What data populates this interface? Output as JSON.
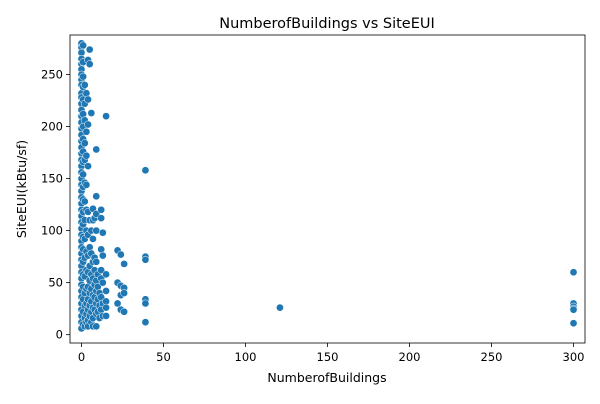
{
  "chart_data": {
    "type": "scatter",
    "title": "NumberofBuildings vs SiteEUI",
    "xlabel": "NumberofBuildings",
    "ylabel": "SiteEUI(kBtu/sf)",
    "xlim": [
      -7,
      307
    ],
    "ylim": [
      -8,
      288
    ],
    "xticks": [
      0,
      50,
      100,
      150,
      200,
      250,
      300
    ],
    "yticks": [
      0,
      50,
      100,
      150,
      200,
      250
    ],
    "grid": false,
    "color": "#1f77b4",
    "series": [
      {
        "points": [
          [
            0,
            280
          ],
          [
            0,
            276
          ],
          [
            0,
            271
          ],
          [
            0,
            265
          ],
          [
            0,
            260
          ],
          [
            0,
            255
          ],
          [
            0,
            250
          ],
          [
            0,
            245
          ],
          [
            0,
            240
          ],
          [
            0,
            232
          ],
          [
            0,
            228
          ],
          [
            0,
            222
          ],
          [
            0,
            216
          ],
          [
            0,
            210
          ],
          [
            0,
            204
          ],
          [
            0,
            198
          ],
          [
            0,
            192
          ],
          [
            0,
            186
          ],
          [
            0,
            180
          ],
          [
            0,
            174
          ],
          [
            0,
            168
          ],
          [
            0,
            162
          ],
          [
            0,
            156
          ],
          [
            0,
            150
          ],
          [
            0,
            144
          ],
          [
            0,
            138
          ],
          [
            0,
            132
          ],
          [
            0,
            126
          ],
          [
            0,
            120
          ],
          [
            0,
            114
          ],
          [
            0,
            108
          ],
          [
            0,
            102
          ],
          [
            0,
            96
          ],
          [
            0,
            90
          ],
          [
            0,
            84
          ],
          [
            0,
            78
          ],
          [
            0,
            72
          ],
          [
            0,
            66
          ],
          [
            0,
            60
          ],
          [
            0,
            54
          ],
          [
            0,
            48
          ],
          [
            0,
            42
          ],
          [
            0,
            36
          ],
          [
            0,
            30
          ],
          [
            0,
            24
          ],
          [
            0,
            18
          ],
          [
            0,
            12
          ],
          [
            0,
            6
          ],
          [
            1,
            278
          ],
          [
            1,
            262
          ],
          [
            1,
            248
          ],
          [
            1,
            238
          ],
          [
            1,
            226
          ],
          [
            1,
            212
          ],
          [
            1,
            200
          ],
          [
            1,
            188
          ],
          [
            1,
            176
          ],
          [
            1,
            166
          ],
          [
            1,
            154
          ],
          [
            1,
            142
          ],
          [
            1,
            130
          ],
          [
            1,
            118
          ],
          [
            1,
            106
          ],
          [
            1,
            94
          ],
          [
            1,
            82
          ],
          [
            1,
            70
          ],
          [
            1,
            58
          ],
          [
            1,
            46
          ],
          [
            1,
            34
          ],
          [
            1,
            22
          ],
          [
            1,
            10
          ],
          [
            2,
            240
          ],
          [
            2,
            222
          ],
          [
            2,
            206
          ],
          [
            2,
            184
          ],
          [
            2,
            168
          ],
          [
            2,
            146
          ],
          [
            2,
            128
          ],
          [
            2,
            110
          ],
          [
            2,
            92
          ],
          [
            2,
            74
          ],
          [
            2,
            56
          ],
          [
            2,
            40
          ],
          [
            2,
            28
          ],
          [
            2,
            16
          ],
          [
            2,
            8
          ],
          [
            3,
            232
          ],
          [
            3,
            195
          ],
          [
            3,
            172
          ],
          [
            3,
            144
          ],
          [
            3,
            120
          ],
          [
            3,
            100
          ],
          [
            3,
            80
          ],
          [
            3,
            62
          ],
          [
            3,
            44
          ],
          [
            3,
            30
          ],
          [
            3,
            20
          ],
          [
            3,
            12
          ],
          [
            4,
            264
          ],
          [
            4,
            226
          ],
          [
            4,
            202
          ],
          [
            4,
            162
          ],
          [
            4,
            118
          ],
          [
            4,
            96
          ],
          [
            4,
            76
          ],
          [
            4,
            60
          ],
          [
            4,
            46
          ],
          [
            4,
            34
          ],
          [
            4,
            24
          ],
          [
            4,
            14
          ],
          [
            4,
            8
          ],
          [
            5,
            274
          ],
          [
            5,
            260
          ],
          [
            5,
            110
          ],
          [
            5,
            84
          ],
          [
            5,
            66
          ],
          [
            5,
            52
          ],
          [
            5,
            40
          ],
          [
            5,
            28
          ],
          [
            5,
            18
          ],
          [
            6,
            213
          ],
          [
            6,
            100
          ],
          [
            6,
            78
          ],
          [
            6,
            58
          ],
          [
            6,
            44
          ],
          [
            6,
            32
          ],
          [
            6,
            22
          ],
          [
            6,
            12
          ],
          [
            7,
            121
          ],
          [
            7,
            110
          ],
          [
            7,
            92
          ],
          [
            7,
            70
          ],
          [
            7,
            54
          ],
          [
            7,
            38
          ],
          [
            7,
            26
          ],
          [
            7,
            16
          ],
          [
            7,
            8
          ],
          [
            8,
            112
          ],
          [
            8,
            74
          ],
          [
            8,
            62
          ],
          [
            8,
            48
          ],
          [
            8,
            36
          ],
          [
            8,
            24
          ],
          [
            9,
            178
          ],
          [
            9,
            133
          ],
          [
            9,
            116
          ],
          [
            9,
            100
          ],
          [
            9,
            70
          ],
          [
            9,
            52
          ],
          [
            9,
            42
          ],
          [
            9,
            30
          ],
          [
            9,
            20
          ],
          [
            9,
            8
          ],
          [
            10,
            58
          ],
          [
            10,
            46
          ],
          [
            10,
            34
          ],
          [
            10,
            22
          ],
          [
            11,
            40
          ],
          [
            11,
            28
          ],
          [
            11,
            16
          ],
          [
            12,
            120
          ],
          [
            12,
            112
          ],
          [
            12,
            82
          ],
          [
            12,
            62
          ],
          [
            12,
            54
          ],
          [
            12,
            36
          ],
          [
            12,
            24
          ],
          [
            13,
            98
          ],
          [
            13,
            76
          ],
          [
            13,
            50
          ],
          [
            13,
            30
          ],
          [
            13,
            18
          ],
          [
            15,
            210
          ],
          [
            15,
            58
          ],
          [
            15,
            42
          ],
          [
            15,
            32
          ],
          [
            15,
            26
          ],
          [
            15,
            18
          ],
          [
            22,
            81
          ],
          [
            22,
            50
          ],
          [
            22,
            30
          ],
          [
            24,
            77
          ],
          [
            24,
            47
          ],
          [
            24,
            38
          ],
          [
            24,
            24
          ],
          [
            26,
            68
          ],
          [
            26,
            45
          ],
          [
            26,
            40
          ],
          [
            26,
            22
          ],
          [
            39,
            158
          ],
          [
            39,
            75
          ],
          [
            39,
            72
          ],
          [
            39,
            34
          ],
          [
            39,
            30
          ],
          [
            39,
            12
          ],
          [
            121,
            26
          ],
          [
            300,
            60
          ],
          [
            300,
            30
          ],
          [
            300,
            27
          ],
          [
            300,
            25
          ],
          [
            300,
            24
          ],
          [
            300,
            11
          ]
        ]
      }
    ]
  }
}
